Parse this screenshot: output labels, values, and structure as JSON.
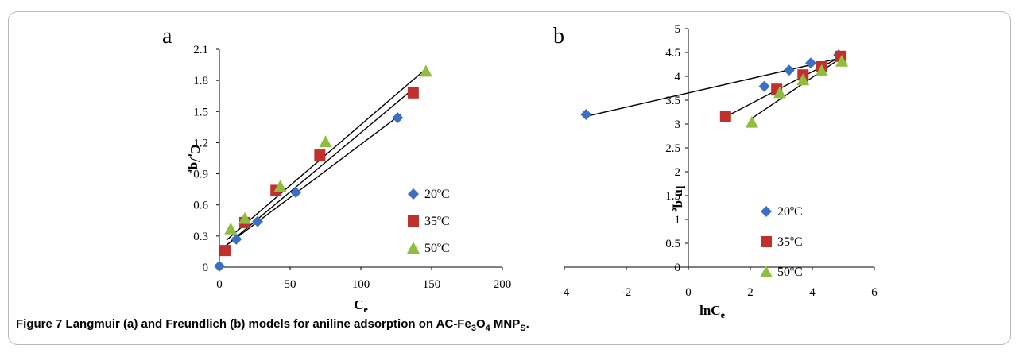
{
  "figure": {
    "caption_label": "Figure 7",
    "caption_parts": [
      {
        "t": " Langmuir (a) and Freundlich (b) models for aniline adsorption on AC-Fe"
      },
      {
        "t": "3",
        "sub": true
      },
      {
        "t": "O"
      },
      {
        "t": "4",
        "sub": true
      },
      {
        "t": " MNP"
      },
      {
        "t": "S",
        "sub": true
      },
      {
        "t": "."
      }
    ]
  },
  "chart_data": [
    {
      "type": "scatter",
      "panel_label": "a",
      "xlabel": {
        "main": "C",
        "sub": "e"
      },
      "ylabel": {
        "parts": [
          {
            "t": "C"
          },
          {
            "t": "e",
            "sub": true
          },
          {
            "t": "/q"
          },
          {
            "t": "e",
            "sub": true
          }
        ]
      },
      "xlim": [
        0,
        200
      ],
      "ylim": [
        0,
        2.1
      ],
      "xticks": [
        0,
        50,
        100,
        150,
        200
      ],
      "xtick_labels": [
        "0",
        "50",
        "100",
        "150",
        "200"
      ],
      "yticks": [
        0,
        0.3,
        0.6,
        0.9,
        1.2,
        1.5,
        1.8,
        2.1
      ],
      "ytick_labels": [
        "0",
        "0.3",
        "0.6",
        "0.9",
        "1.2",
        "1.5",
        "1.8",
        "2.1"
      ],
      "legend_position": "bottom-right",
      "series": [
        {
          "name": "20ºC",
          "marker": "diamond",
          "color": "#3a6fc4",
          "points": [
            [
              0,
              0.01
            ],
            [
              12,
              0.27
            ],
            [
              27,
              0.44
            ],
            [
              54,
              0.72
            ],
            [
              126,
              1.44
            ]
          ],
          "trendline": [
            [
              0,
              0.16
            ],
            [
              128,
              1.47
            ]
          ]
        },
        {
          "name": "35ºC",
          "marker": "square",
          "color": "#c0302d",
          "points": [
            [
              4,
              0.16
            ],
            [
              18,
              0.43
            ],
            [
              40,
              0.74
            ],
            [
              71,
              1.08
            ],
            [
              137,
              1.68
            ]
          ],
          "trendline": [
            [
              4,
              0.2
            ],
            [
              138,
              1.73
            ]
          ]
        },
        {
          "name": "50ºC",
          "marker": "triangle",
          "color": "#8fbe3f",
          "points": [
            [
              8,
              0.37
            ],
            [
              18,
              0.47
            ],
            [
              43,
              0.78
            ],
            [
              75,
              1.21
            ],
            [
              146,
              1.89
            ]
          ],
          "trendline": [
            [
              5,
              0.26
            ],
            [
              145,
              1.9
            ]
          ]
        }
      ]
    },
    {
      "type": "scatter",
      "panel_label": "b",
      "xlabel": {
        "main": "lnC",
        "sub": "e"
      },
      "ylabel": {
        "parts": [
          {
            "t": "ln q"
          },
          {
            "t": "e",
            "sub": true
          }
        ]
      },
      "xlim": [
        -4,
        6
      ],
      "ylim": [
        0,
        5
      ],
      "xticks": [
        -4,
        -2,
        0,
        2,
        4,
        6
      ],
      "xtick_labels": [
        "-4",
        "-2",
        "0",
        "2",
        "4",
        "6"
      ],
      "yticks": [
        0,
        0.5,
        1,
        1.5,
        2,
        2.5,
        3,
        3.5,
        4,
        4.5,
        5
      ],
      "ytick_labels": [
        "0",
        "0.5",
        "1",
        "1.5",
        "2",
        "2.5",
        "3",
        "3.5",
        "4",
        "4.5",
        "5"
      ],
      "legend_position": "bottom-center",
      "series": [
        {
          "name": "20ºC",
          "marker": "diamond",
          "color": "#3a6fc4",
          "points": [
            [
              -3.3,
              3.2
            ],
            [
              2.45,
              3.79
            ],
            [
              3.25,
              4.13
            ],
            [
              3.95,
              4.28
            ],
            [
              4.85,
              4.45
            ]
          ],
          "trendline": [
            [
              -3.3,
              3.16
            ],
            [
              4.95,
              4.39
            ]
          ]
        },
        {
          "name": "35ºC",
          "marker": "square",
          "color": "#c0302d",
          "points": [
            [
              1.2,
              3.15
            ],
            [
              2.85,
              3.73
            ],
            [
              3.7,
              4.03
            ],
            [
              4.3,
              4.2
            ],
            [
              4.9,
              4.42
            ]
          ],
          "trendline": [
            [
              1.2,
              3.15
            ],
            [
              4.95,
              4.42
            ]
          ]
        },
        {
          "name": "50ºC",
          "marker": "triangle",
          "color": "#8fbe3f",
          "points": [
            [
              2.05,
              3.04
            ],
            [
              2.95,
              3.66
            ],
            [
              3.7,
              3.93
            ],
            [
              4.3,
              4.12
            ],
            [
              4.95,
              4.32
            ]
          ],
          "trendline": [
            [
              2.05,
              3.12
            ],
            [
              5.0,
              4.42
            ]
          ]
        }
      ]
    }
  ]
}
